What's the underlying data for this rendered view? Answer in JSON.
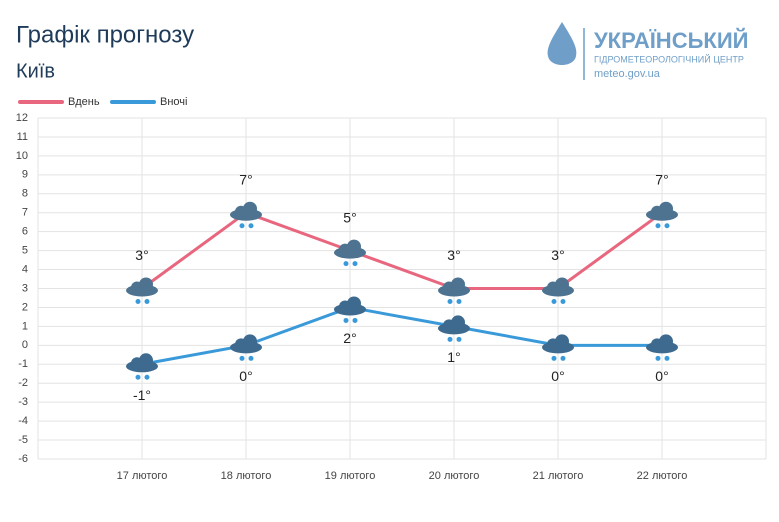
{
  "header": {
    "title": "Графік прогнозу",
    "city": "Київ",
    "logo_title": "УКРАЇНСЬКИЙ",
    "logo_subtitle": "ГІДРОМЕТЕОРОЛОГІЧНИЙ ЦЕНТР",
    "logo_url": "meteo.gov.ua"
  },
  "chart_data": {
    "type": "line",
    "categories": [
      "17 лютого",
      "18 лютого",
      "19 лютого",
      "20 лютого",
      "21 лютого",
      "22 лютого"
    ],
    "series": [
      {
        "name": "Вдень",
        "color": "#e8677f",
        "values": [
          3,
          7,
          5,
          3,
          3,
          7
        ],
        "value_labels": [
          "3°",
          "7°",
          "5°",
          "3°",
          "3°",
          "7°"
        ]
      },
      {
        "name": "Вночі",
        "color": "#3a9ad9",
        "values": [
          -1,
          0,
          2,
          1,
          0,
          0
        ],
        "value_labels": [
          "-1°",
          "0°",
          "2°",
          "1°",
          "0°",
          "0°"
        ]
      }
    ],
    "ylim": [
      -6,
      12
    ],
    "yticks": [
      -6,
      -5,
      -4,
      -3,
      -2,
      -1,
      0,
      1,
      2,
      3,
      4,
      5,
      6,
      7,
      8,
      9,
      10,
      11,
      12
    ],
    "grid": true,
    "legend": "top-left"
  }
}
